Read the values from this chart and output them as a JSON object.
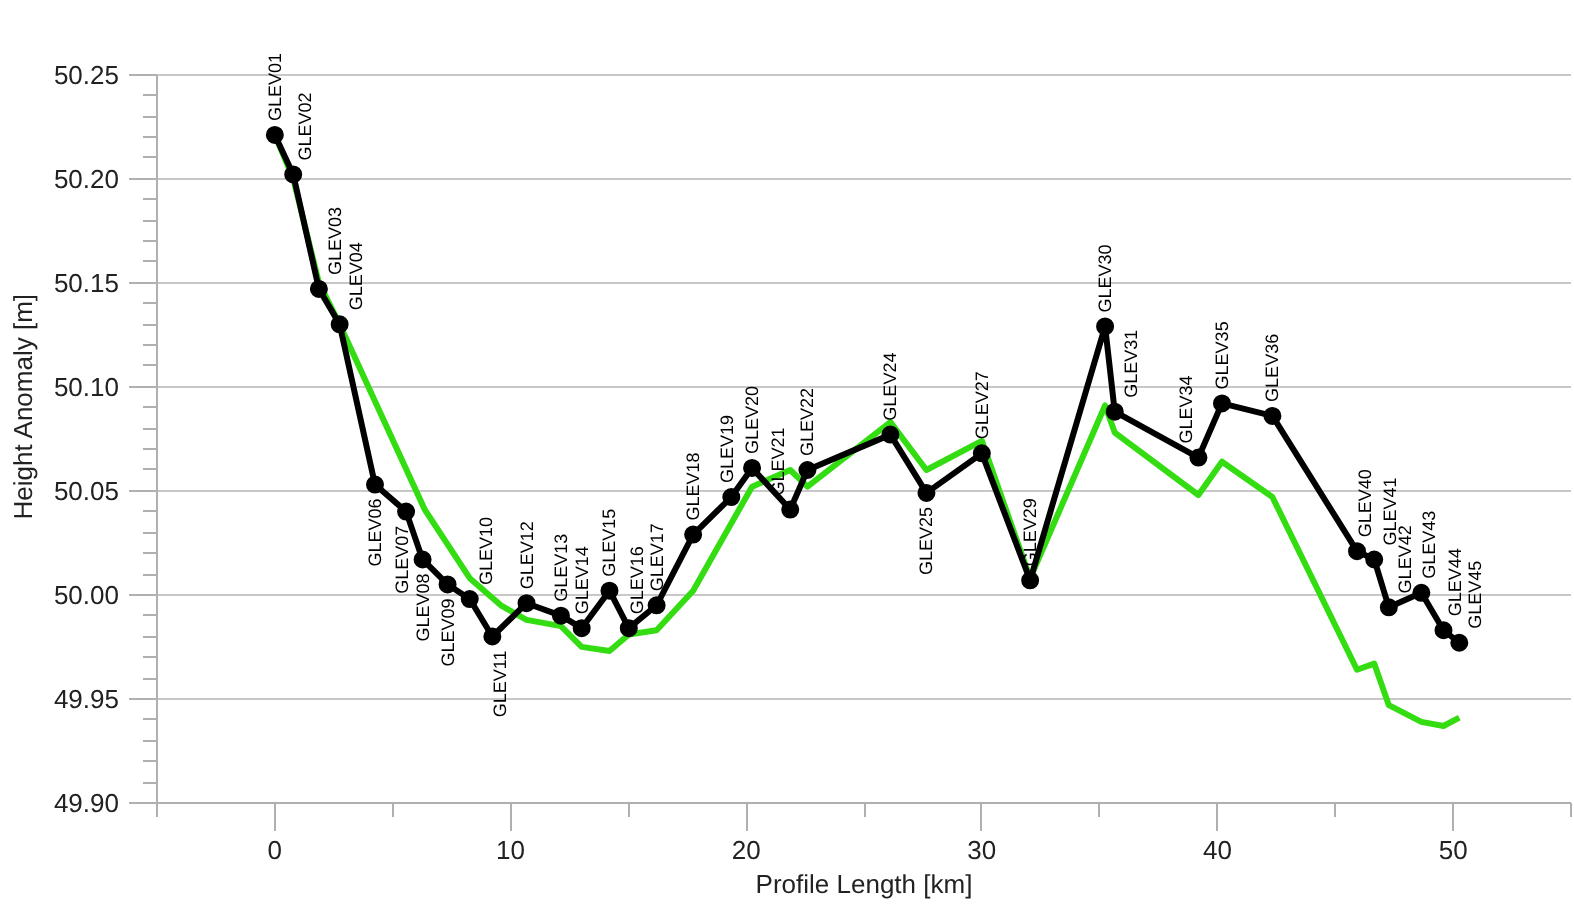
{
  "chart_data": {
    "type": "line",
    "xlabel": "Profile Length [km]",
    "ylabel": "Height Anomaly [m]",
    "xlim": [
      -5,
      55
    ],
    "ylim": [
      49.9,
      50.25
    ],
    "xticks": [
      {
        "value": -5,
        "label": null
      },
      0,
      {
        "value": 5,
        "label": null
      },
      10,
      {
        "value": 15,
        "label": null
      },
      20,
      {
        "value": 25,
        "label": null
      },
      30,
      {
        "value": 35,
        "label": null
      },
      40,
      {
        "value": 45,
        "label": null
      },
      50,
      {
        "value": 55,
        "label": null
      }
    ],
    "yticks": [
      {
        "value": 49.9,
        "label": "49.90"
      },
      {
        "value": 49.91,
        "label": null
      },
      {
        "value": 49.92,
        "label": null
      },
      {
        "value": 49.93,
        "label": null
      },
      {
        "value": 49.94,
        "label": null
      },
      49.95,
      {
        "value": 49.96,
        "label": null
      },
      {
        "value": 49.97,
        "label": null
      },
      {
        "value": 49.98,
        "label": null
      },
      {
        "value": 49.99,
        "label": null
      },
      {
        "value": 50.0,
        "label": "50.00"
      },
      {
        "value": 50.01,
        "label": null
      },
      {
        "value": 50.02,
        "label": null
      },
      {
        "value": 50.03,
        "label": null
      },
      {
        "value": 50.04,
        "label": null
      },
      50.05,
      {
        "value": 50.06,
        "label": null
      },
      {
        "value": 50.07,
        "label": null
      },
      {
        "value": 50.08,
        "label": null
      },
      {
        "value": 50.09,
        "label": null
      },
      {
        "value": 50.1,
        "label": "50.10"
      },
      {
        "value": 50.11,
        "label": null
      },
      {
        "value": 50.12,
        "label": null
      },
      {
        "value": 50.13,
        "label": null
      },
      {
        "value": 50.14,
        "label": null
      },
      50.15,
      {
        "value": 50.16,
        "label": null
      },
      {
        "value": 50.17,
        "label": null
      },
      {
        "value": 50.18,
        "label": null
      },
      {
        "value": 50.19,
        "label": null
      },
      {
        "value": 50.2,
        "label": "50.20"
      },
      {
        "value": 50.21,
        "label": null
      },
      {
        "value": 50.22,
        "label": null
      },
      {
        "value": 50.23,
        "label": null
      },
      {
        "value": 50.24,
        "label": null
      },
      50.25
    ],
    "grid": "y",
    "line_style": "solid",
    "series": [
      {
        "color": "#33dd11",
        "marker": "none",
        "x": [
          0,
          0.78,
          1.87,
          2.75,
          6.36,
          8.27,
          9.59,
          10.68,
          12.14,
          13.02,
          14.2,
          15.02,
          16.2,
          17.75,
          20.25,
          21.87,
          22.6,
          26.12,
          27.65,
          30.0,
          32.05,
          35.23,
          35.64,
          39.19,
          40.19,
          42.33,
          45.92,
          46.65,
          47.27,
          48.65,
          49.59,
          50.26
        ],
        "values": [
          50.221,
          50.2,
          50.15,
          50.13,
          50.041,
          50.008,
          49.995,
          49.988,
          49.985,
          49.975,
          49.973,
          49.981,
          49.983,
          50.002,
          50.052,
          50.06,
          50.052,
          50.083,
          50.06,
          50.074,
          50.008,
          50.091,
          50.078,
          50.048,
          50.064,
          50.047,
          49.964,
          49.967,
          49.947,
          49.939,
          49.937,
          49.941
        ]
      },
      {
        "color": "#000000",
        "marker": "circle",
        "x": [
          0,
          0.78,
          1.87,
          2.75,
          4.25,
          5.57,
          6.27,
          7.33,
          8.27,
          9.23,
          10.68,
          12.14,
          13.02,
          14.2,
          15.02,
          16.2,
          17.75,
          19.37,
          20.25,
          21.87,
          22.6,
          26.12,
          27.65,
          30.0,
          32.05,
          35.23,
          35.64,
          39.19,
          40.19,
          42.33,
          45.92,
          46.65,
          47.27,
          48.65,
          49.59,
          50.26
        ],
        "values": [
          50.221,
          50.202,
          50.147,
          50.13,
          50.053,
          50.04,
          50.017,
          50.005,
          49.998,
          49.98,
          49.996,
          49.99,
          49.984,
          50.002,
          49.984,
          49.995,
          50.029,
          50.047,
          50.061,
          50.041,
          50.06,
          50.077,
          50.049,
          50.068,
          50.007,
          50.129,
          50.088,
          50.066,
          50.092,
          50.086,
          50.021,
          50.017,
          49.994,
          50.001,
          49.983,
          49.977
        ]
      }
    ],
    "annotations": [
      {
        "text": "GLEV01",
        "x": 0,
        "y": 50.221
      },
      {
        "text": "GLEV02",
        "x": 0.78,
        "y": 50.202
      },
      {
        "text": "GLEV03",
        "x": 1.87,
        "y": 50.147
      },
      {
        "text": "GLEV04",
        "x": 2.75,
        "y": 50.13
      },
      {
        "text": "GLEV06",
        "x": 4.25,
        "y": 50.053
      },
      {
        "text": "GLEV07",
        "x": 5.57,
        "y": 50.04
      },
      {
        "text": "GLEV08",
        "x": 6.27,
        "y": 50.017
      },
      {
        "text": "GLEV09",
        "x": 7.33,
        "y": 50.005
      },
      {
        "text": "GLEV10",
        "x": 8.27,
        "y": 49.998
      },
      {
        "text": "GLEV11",
        "x": 9.23,
        "y": 49.98
      },
      {
        "text": "GLEV12",
        "x": 10.68,
        "y": 49.996
      },
      {
        "text": "GLEV13",
        "x": 12.14,
        "y": 49.99
      },
      {
        "text": "GLEV14",
        "x": 13.02,
        "y": 49.984
      },
      {
        "text": "GLEV15",
        "x": 14.2,
        "y": 50.002
      },
      {
        "text": "GLEV16",
        "x": 15.02,
        "y": 49.984
      },
      {
        "text": "GLEV17",
        "x": 16.2,
        "y": 49.995
      },
      {
        "text": "GLEV18",
        "x": 17.75,
        "y": 50.029
      },
      {
        "text": "GLEV19",
        "x": 19.37,
        "y": 50.047
      },
      {
        "text": "GLEV20",
        "x": 20.25,
        "y": 50.061
      },
      {
        "text": "GLEV21",
        "x": 21.87,
        "y": 50.041
      },
      {
        "text": "GLEV22",
        "x": 22.6,
        "y": 50.06
      },
      {
        "text": "GLEV24",
        "x": 26.12,
        "y": 50.077
      },
      {
        "text": "GLEV25",
        "x": 27.65,
        "y": 50.049
      },
      {
        "text": "GLEV27",
        "x": 30.0,
        "y": 50.068
      },
      {
        "text": "GLEV29",
        "x": 32.05,
        "y": 50.007
      },
      {
        "text": "GLEV30",
        "x": 35.23,
        "y": 50.129
      },
      {
        "text": "GLEV31",
        "x": 35.64,
        "y": 50.088
      },
      {
        "text": "GLEV34",
        "x": 39.19,
        "y": 50.066
      },
      {
        "text": "GLEV35",
        "x": 40.19,
        "y": 50.092
      },
      {
        "text": "GLEV36",
        "x": 42.33,
        "y": 50.086
      },
      {
        "text": "GLEV40",
        "x": 45.92,
        "y": 50.021
      },
      {
        "text": "GLEV41",
        "x": 46.65,
        "y": 50.017
      },
      {
        "text": "GLEV42",
        "x": 47.27,
        "y": 49.994
      },
      {
        "text": "GLEV43",
        "x": 48.65,
        "y": 50.001
      },
      {
        "text": "GLEV44",
        "x": 49.59,
        "y": 49.983
      },
      {
        "text": "GLEV45",
        "x": 50.26,
        "y": 49.977
      }
    ]
  }
}
